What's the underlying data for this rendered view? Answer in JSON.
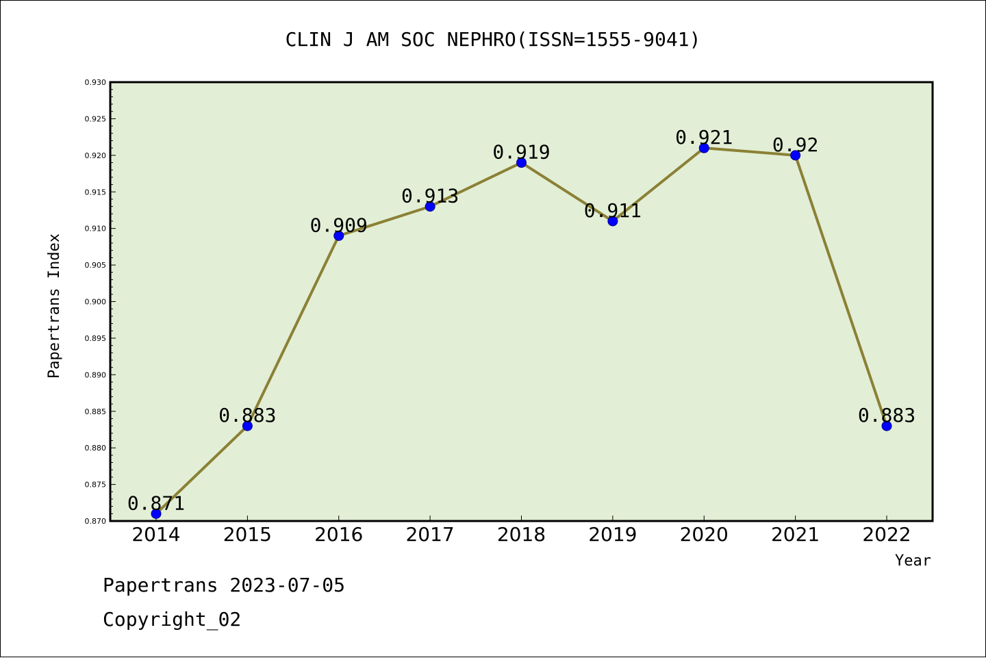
{
  "chart_data": {
    "type": "line",
    "title": "CLIN J AM SOC NEPHRO(ISSN=1555-9041)",
    "xlabel": "Year",
    "ylabel": "Papertrans Index",
    "categories": [
      "2014",
      "2015",
      "2016",
      "2017",
      "2018",
      "2019",
      "2020",
      "2021",
      "2022"
    ],
    "values": [
      0.871,
      0.883,
      0.909,
      0.913,
      0.919,
      0.911,
      0.921,
      0.92,
      0.883
    ],
    "data_labels": [
      "0.871",
      "0.883",
      "0.909",
      "0.913",
      "0.919",
      "0.911",
      "0.921",
      "0.92",
      "0.883"
    ],
    "ylim": [
      0.87,
      0.93
    ],
    "yticks": [
      "0.870",
      "0.875",
      "0.880",
      "0.885",
      "0.890",
      "0.895",
      "0.900",
      "0.905",
      "0.910",
      "0.915",
      "0.920",
      "0.925",
      "0.930"
    ],
    "grid": false,
    "legend": "none"
  },
  "footer": {
    "line1": "Papertrans 2023-07-05",
    "line2": "Copyright_02"
  },
  "colors": {
    "plot_background": "#e2efd6",
    "line": "#8b8035",
    "marker": "#0000ff"
  }
}
